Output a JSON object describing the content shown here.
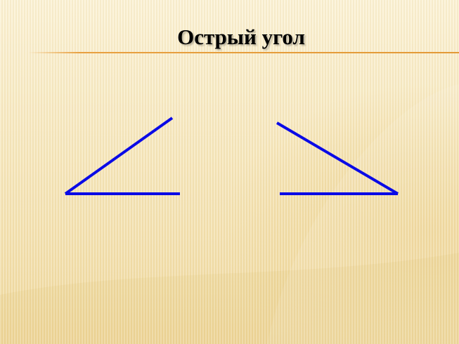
{
  "slide": {
    "title": "Острый угол"
  },
  "colors": {
    "line": "#0a0ae6",
    "rule": "#e39a36",
    "background": "#f6e7bd"
  },
  "figures": {
    "count": 2,
    "kind": "acute-angle"
  }
}
